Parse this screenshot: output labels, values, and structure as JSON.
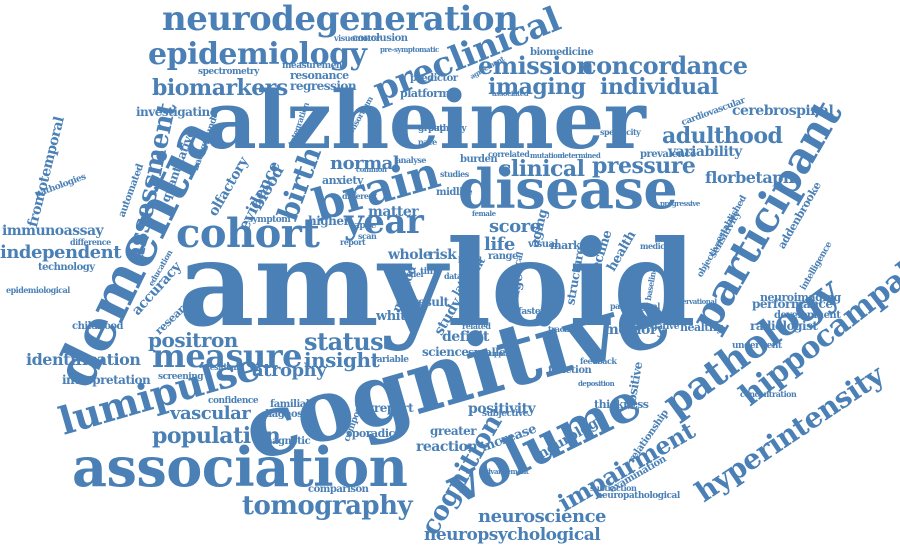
{
  "colors": {
    "word": "#4a80b5",
    "background": "#ffffff"
  },
  "words": [
    "amyloid",
    "cognitive",
    "alzheimer",
    "dementia",
    "disease",
    "association",
    "brain",
    "volume",
    "cohort",
    "participant",
    "pathology",
    "lumipulse",
    "neurodegeneration",
    "preclinical",
    "epidemiology",
    "measure",
    "year",
    "hippocampal",
    "hyperintensity",
    "tomography",
    "impairment",
    "cognition",
    "emission",
    "concordance",
    "imaging",
    "individual",
    "biomarkers",
    "assessment",
    "adulthood",
    "population",
    "birth",
    "status",
    "insight",
    "positron",
    "clinical",
    "pressure",
    "neuroscience",
    "neuropsychological",
    "immunoassay",
    "independent",
    "frontotemporal",
    "identification",
    "vascular",
    "regression",
    "resonance",
    "measurement",
    "spectrometry",
    "conclusion",
    "visuomotor",
    "biomedicine",
    "cerebrospinal",
    "variability",
    "florbetapir",
    "addenbrooke",
    "neuroimaging",
    "performance",
    "development",
    "radiologist",
    "memory",
    "thickness",
    "atrophy",
    "comparison",
    "science",
    "score",
    "life",
    "normal",
    "matter",
    "white",
    "evidence",
    "olfactory",
    "blood",
    "accuracy",
    "quantitative",
    "investigating",
    "platform",
    "predictor",
    "neurology",
    "decline",
    "examination",
    "relationship",
    "positivity",
    "greater",
    "reaction",
    "increase",
    "composite",
    "magnetic",
    "childhood",
    "interpretation",
    "screening",
    "technology",
    "epidemiological",
    "deficit",
    "result",
    "study",
    "late",
    "point",
    "change",
    "positive",
    "healthy",
    "underwent",
    "intelligence",
    "sensitivity",
    "objective",
    "established",
    "health",
    "marker",
    "method",
    "whole",
    "risk",
    "aging",
    "cardiovascular",
    "prevalence",
    "specificity",
    "pathway",
    "research",
    "education",
    "difference",
    "automated",
    "pathologies",
    "higher",
    "anxiety",
    "different",
    "symptom",
    "familial",
    "diagnostic",
    "confidence",
    "smaller",
    "function",
    "concentration",
    "negative",
    "pathological",
    "neuropathological",
    "subtraction",
    "subjective",
    "qreport",
    "sporadic",
    "visual",
    "range",
    "structure",
    "cortical",
    "baseline",
    "faster",
    "background",
    "consortium",
    "integration",
    "agreement",
    "pre-symptomatic",
    "correlated",
    "burden",
    "analyse",
    "studies",
    "midlife",
    "based",
    "model",
    "medical",
    "female",
    "scan",
    "report",
    "group",
    "pace",
    "related",
    "tracing",
    "data",
    "time",
    "apoe",
    "residual",
    "associated",
    "common",
    "progressive",
    "observational",
    "support",
    "feedback",
    "variable",
    "deposition",
    "mutation",
    "determined",
    "advancement"
  ]
}
